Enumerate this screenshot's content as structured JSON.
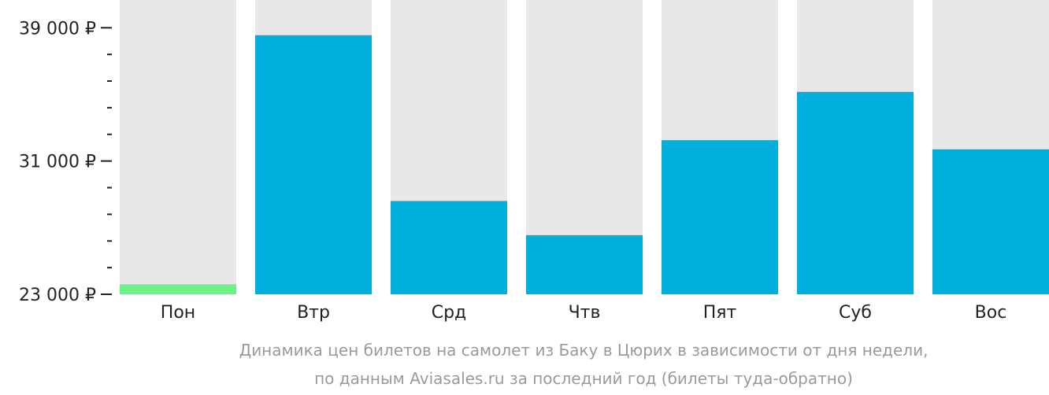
{
  "chart_data": {
    "type": "bar",
    "categories": [
      "Пон",
      "Втр",
      "Срд",
      "Чтв",
      "Пят",
      "Суб",
      "Вос"
    ],
    "values": [
      23600,
      38550,
      28600,
      26550,
      32250,
      35150,
      31700
    ],
    "ylim": [
      23000,
      43500
    ],
    "yticks": [
      23000,
      31000,
      39000
    ],
    "ytick_labels": [
      "23 000 ₽",
      "31 000 ₽",
      "39 000 ₽"
    ],
    "minor_tick_step": 1600,
    "grid": false,
    "legend": "none",
    "caption": [
      "Динамика цен билетов на самолет из Баку в Цюрих в зависимости от дня недели,",
      "по данным Aviasales.ru за последний год (билеты туда-обратно)"
    ],
    "colors": {
      "bar": "#00afdc",
      "bar_min": "#6cf286",
      "bar_track": "#e8e8e8",
      "axis": "#222222",
      "caption": "#9a9a9a"
    }
  }
}
